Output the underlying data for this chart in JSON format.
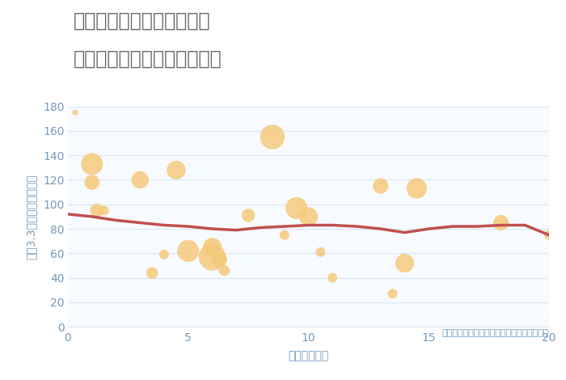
{
  "title_line1": "大阪府堺市堺区大仙西町の",
  "title_line2": "駅距離別中古マンション価格",
  "xlabel": "駅距離（分）",
  "ylabel": "坪（3.3㎡）単価（万円）",
  "scatter_x": [
    0.3,
    1.0,
    1.0,
    1.2,
    1.5,
    3.0,
    3.5,
    4.0,
    4.5,
    5.0,
    6.0,
    6.0,
    6.2,
    6.3,
    6.5,
    7.5,
    8.5,
    9.0,
    9.5,
    10.0,
    10.5,
    11.0,
    13.0,
    13.5,
    14.0,
    14.5,
    18.0,
    20.0
  ],
  "scatter_y": [
    175,
    118,
    133,
    95,
    95,
    120,
    44,
    59,
    128,
    62,
    57,
    65,
    57,
    55,
    46,
    91,
    155,
    75,
    97,
    90,
    61,
    40,
    115,
    27,
    52,
    113,
    85,
    75
  ],
  "scatter_size": [
    25,
    180,
    380,
    140,
    75,
    240,
    110,
    75,
    280,
    380,
    580,
    280,
    140,
    190,
    95,
    140,
    480,
    75,
    380,
    280,
    75,
    75,
    190,
    75,
    280,
    330,
    190,
    75
  ],
  "trend_x": [
    0,
    1,
    2,
    3,
    4,
    5,
    6,
    7,
    8,
    9,
    10,
    11,
    12,
    13,
    14,
    15,
    16,
    17,
    18,
    19,
    20
  ],
  "trend_y": [
    92,
    90,
    87,
    85,
    83,
    82,
    80,
    79,
    81,
    82,
    83,
    83,
    82,
    80,
    77,
    80,
    82,
    82,
    83,
    83,
    75
  ],
  "scatter_color": "#F5C97A",
  "scatter_alpha": 0.85,
  "trend_color": "#C0504D",
  "trend_lw": 2.5,
  "xlim": [
    0,
    20
  ],
  "ylim": [
    0,
    180
  ],
  "yticks": [
    0,
    20,
    40,
    60,
    80,
    100,
    120,
    140,
    160,
    180
  ],
  "xticks": [
    0,
    5,
    10,
    15,
    20
  ],
  "grid_color": "#D6E8F5",
  "bg_color": "#FFFFFF",
  "plot_bg_color": "#F7FBFF",
  "note_text": "円の大きさは、取引のあった物件面積を示す",
  "note_color": "#6B99BB",
  "title_color": "#666666",
  "axis_color": "#7799BB",
  "tick_color": "#7799BB",
  "title_fontsize": 17,
  "label_fontsize": 10,
  "tick_fontsize": 10
}
